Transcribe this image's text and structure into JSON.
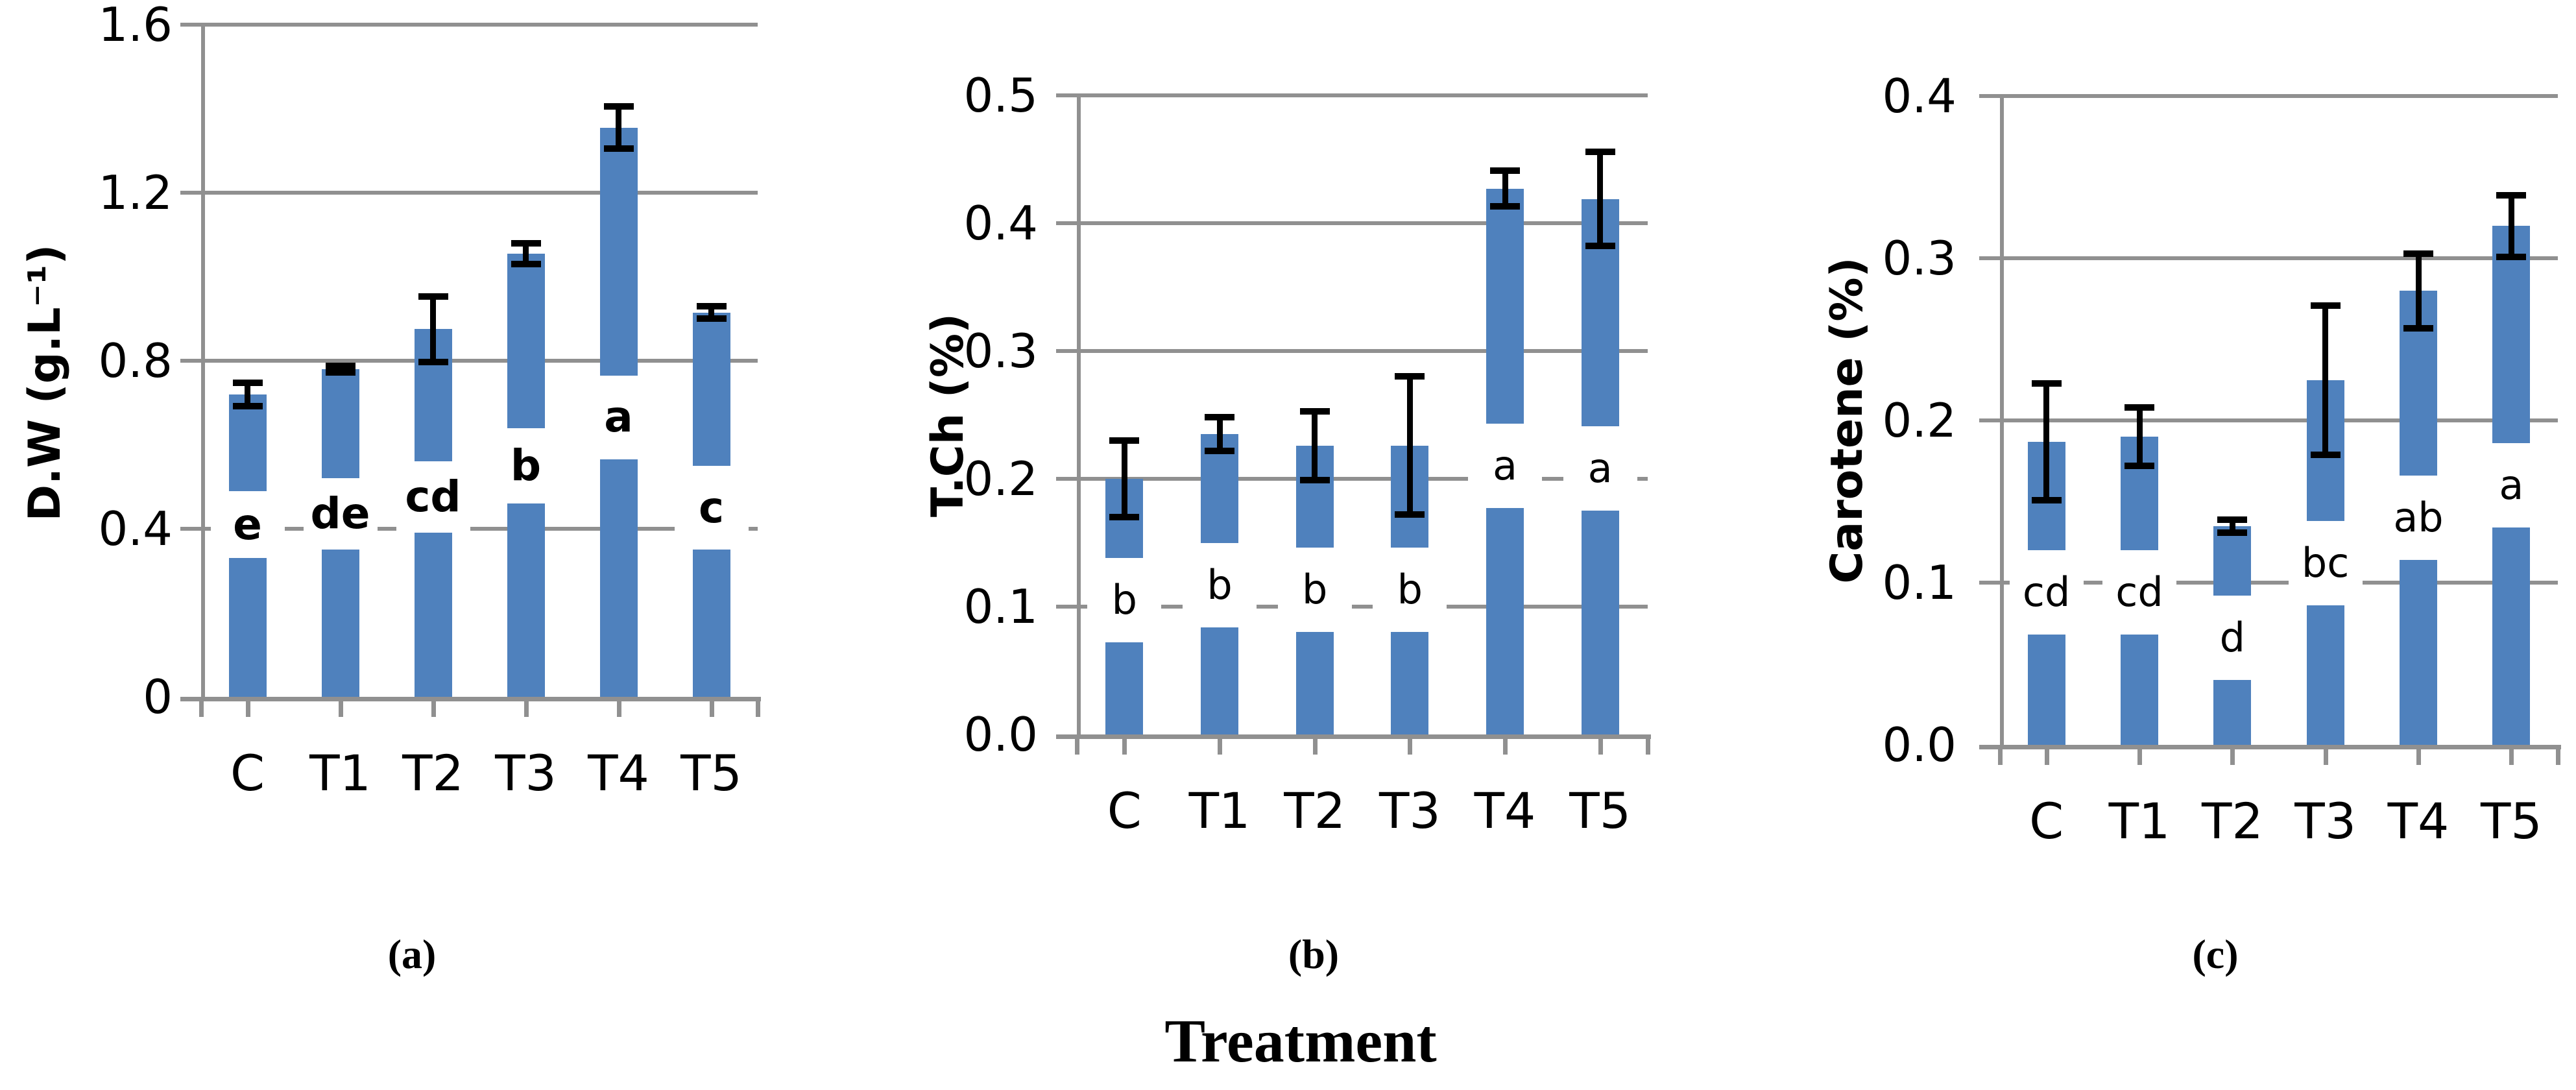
{
  "figure": {
    "captions": {
      "a": "(a)",
      "b": "(b)",
      "c": "(c)"
    },
    "shared_xlabel": "Treatment",
    "colors": {
      "bar": "#4F81BD",
      "grid": "#909090",
      "axis": "#909090",
      "error": "#000000",
      "text": "#000000"
    }
  },
  "chart_data": [
    {
      "id": "a",
      "type": "bar",
      "ylabel": "D.W (g.L⁻¹)",
      "categories": [
        "C",
        "T1",
        "T2",
        "T3",
        "T4",
        "T5"
      ],
      "values": [
        0.72,
        0.78,
        0.875,
        1.055,
        1.355,
        0.915
      ],
      "errors": [
        0.028,
        0.008,
        0.078,
        0.025,
        0.05,
        0.015
      ],
      "sig_letters": [
        "e",
        "de",
        "cd",
        "b",
        "a",
        "c"
      ],
      "letter_y": [
        0.41,
        0.435,
        0.475,
        0.55,
        0.665,
        0.45
      ],
      "gap_h": [
        0.16,
        0.17,
        0.17,
        0.18,
        0.2,
        0.2
      ],
      "ylim": [
        0,
        1.6
      ],
      "ytick_values": [
        0,
        0.4,
        0.8,
        1.2,
        1.6
      ],
      "ytick_labels": [
        "0",
        "0.4",
        "0.8",
        "1.2",
        "1.6"
      ],
      "grid": true,
      "legend": false
    },
    {
      "id": "b",
      "type": "bar",
      "ylabel": "T.Ch (%)",
      "categories": [
        "C",
        "T1",
        "T2",
        "T3",
        "T4",
        "T5"
      ],
      "values": [
        0.2,
        0.235,
        0.226,
        0.226,
        0.427,
        0.419
      ],
      "errors": [
        0.03,
        0.013,
        0.027,
        0.054,
        0.014,
        0.037
      ],
      "sig_letters": [
        "b",
        "b",
        "b",
        "b",
        "a",
        "a"
      ],
      "letter_y": [
        0.105,
        0.117,
        0.113,
        0.113,
        0.21,
        0.208
      ],
      "gap_h": [
        0.066,
        0.066,
        0.066,
        0.066,
        0.066,
        0.066
      ],
      "ylim": [
        0,
        0.5
      ],
      "ytick_values": [
        0,
        0.1,
        0.2,
        0.3,
        0.4,
        0.5
      ],
      "ytick_labels": [
        "0.0",
        "0.1",
        "0.2",
        "0.3",
        "0.4",
        "0.5"
      ],
      "grid": true,
      "legend": false
    },
    {
      "id": "c",
      "type": "bar",
      "ylabel": "Carotene (%)",
      "categories": [
        "C",
        "T1",
        "T2",
        "T3",
        "T4",
        "T5"
      ],
      "values": [
        0.187,
        0.19,
        0.135,
        0.225,
        0.28,
        0.32
      ],
      "errors": [
        0.036,
        0.018,
        0.004,
        0.046,
        0.023,
        0.019
      ],
      "sig_letters": [
        "cd",
        "cd",
        "d",
        "bc",
        "ab",
        "a"
      ],
      "letter_y": [
        0.094,
        0.094,
        0.066,
        0.112,
        0.14,
        0.16
      ],
      "gap_h": [
        0.052,
        0.052,
        0.052,
        0.052,
        0.052,
        0.052
      ],
      "ylim": [
        0,
        0.4
      ],
      "ytick_values": [
        0,
        0.1,
        0.2,
        0.3,
        0.4
      ],
      "ytick_labels": [
        "0.0",
        "0.1",
        "0.2",
        "0.3",
        "0.4"
      ],
      "grid": true,
      "legend": false
    }
  ]
}
